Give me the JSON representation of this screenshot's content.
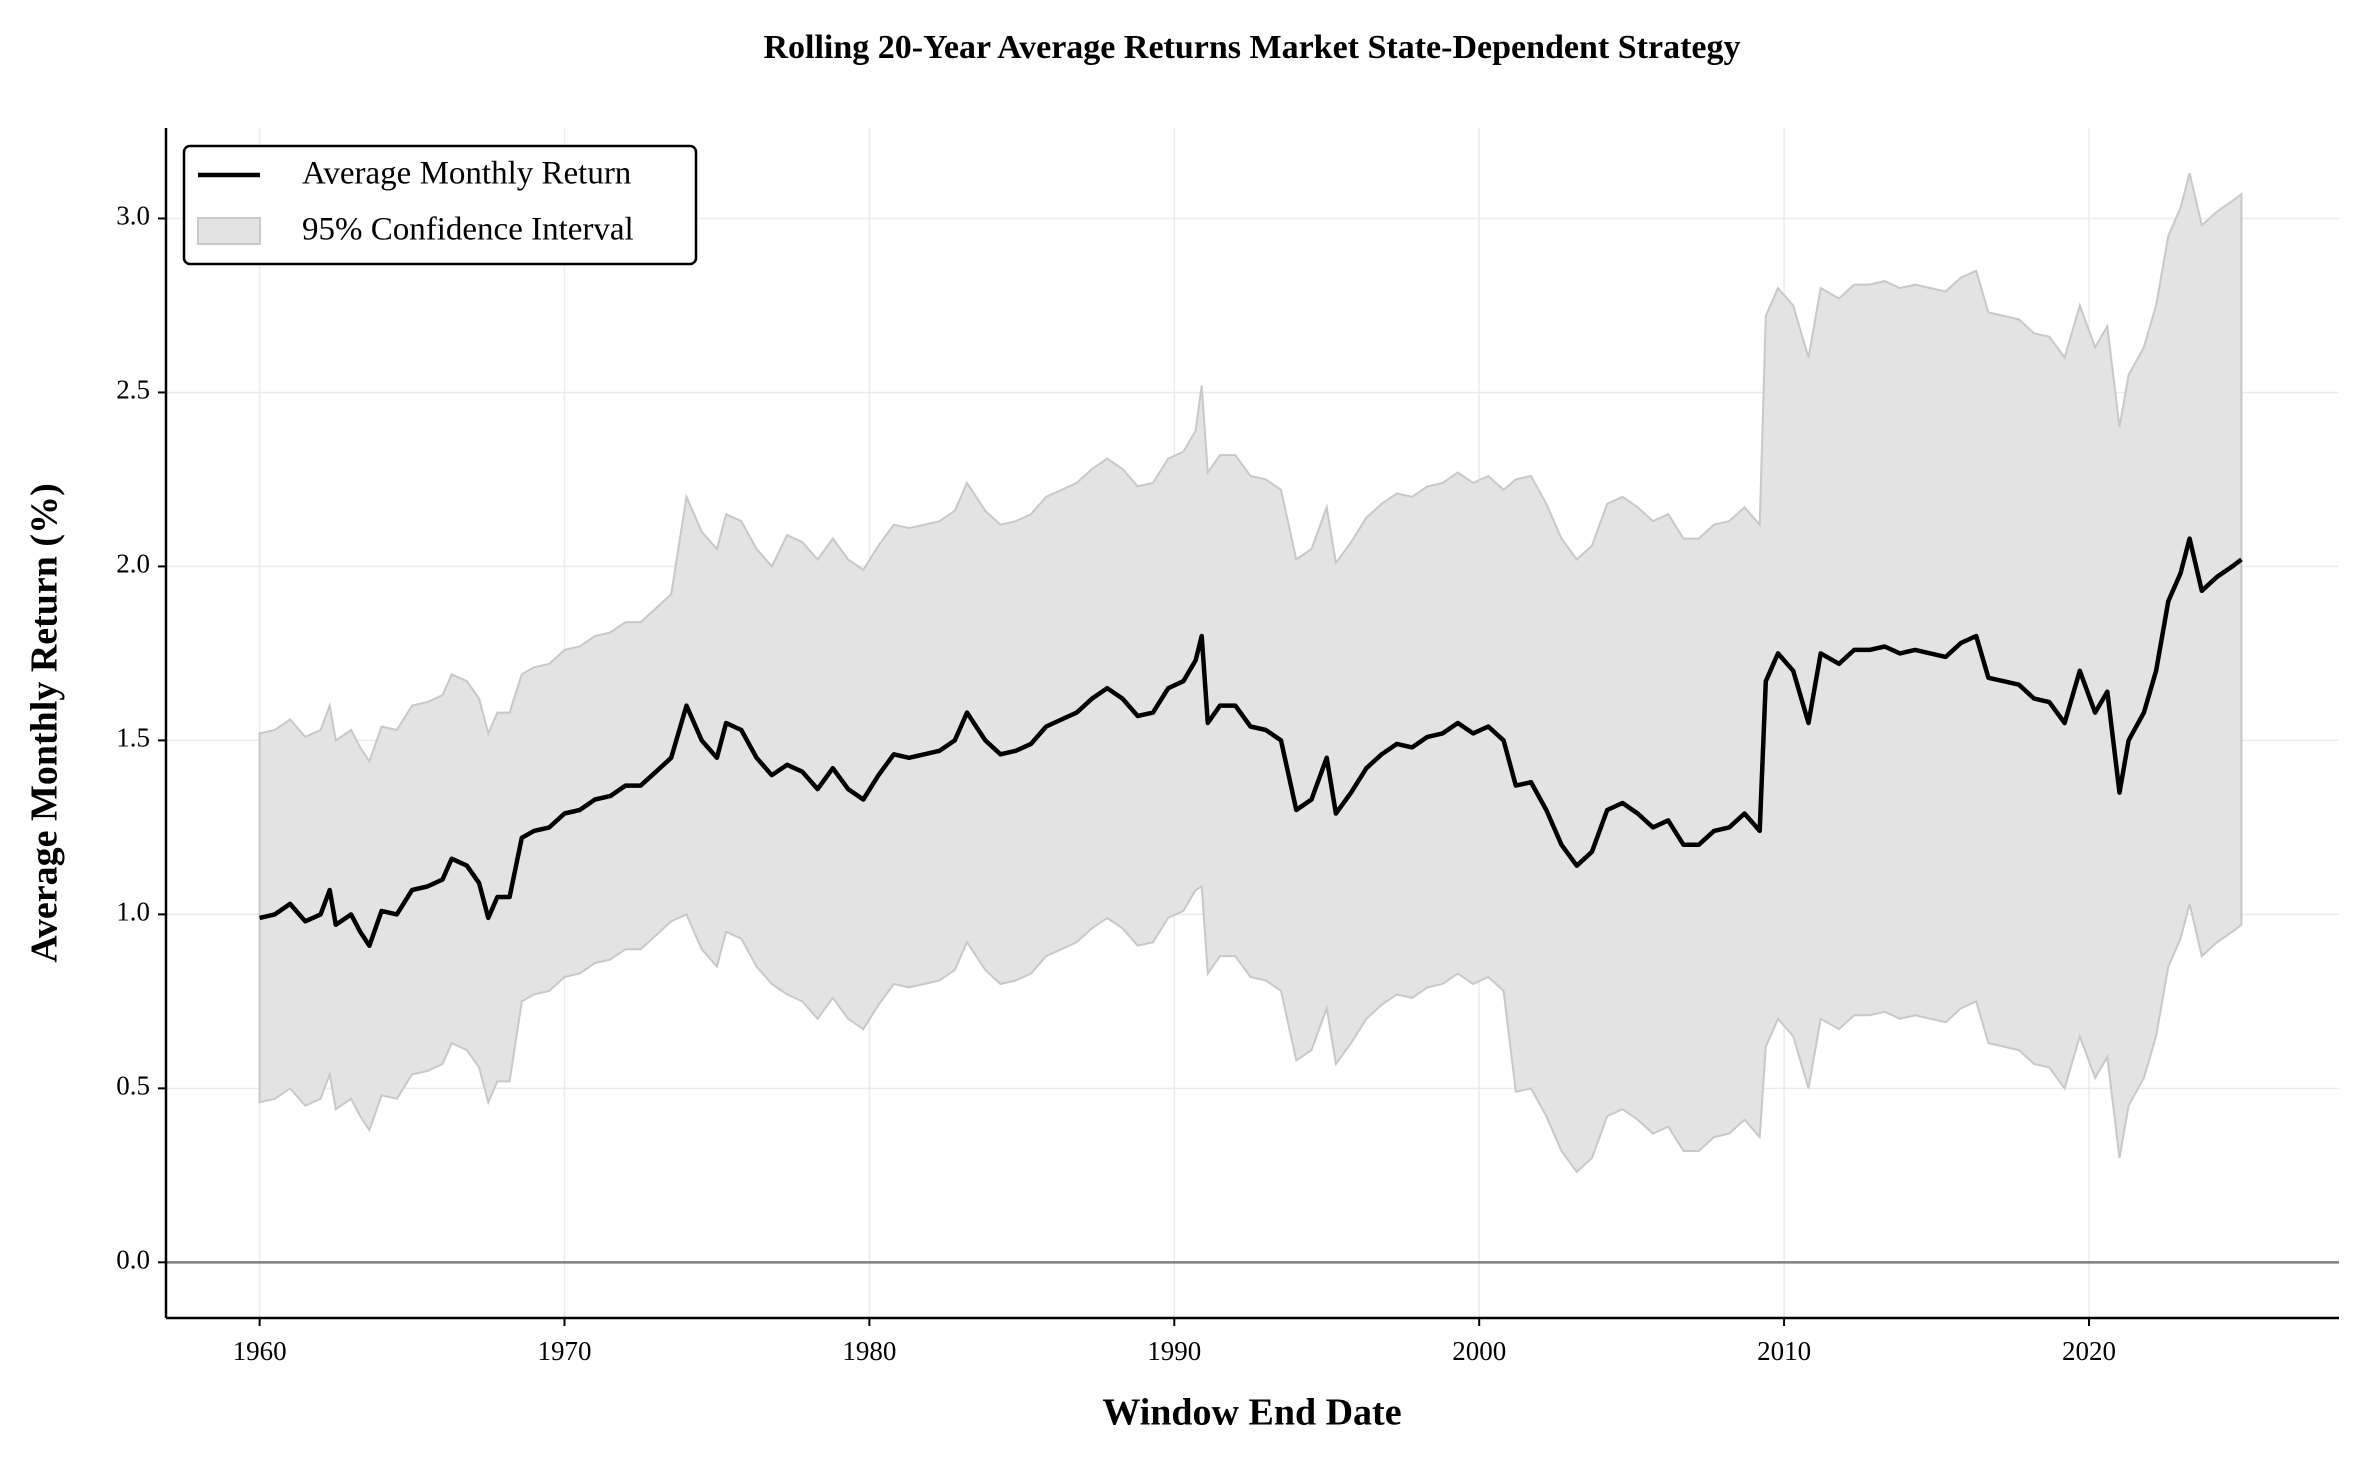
{
  "chart_data": {
    "type": "line",
    "title": "Rolling 20-Year Average Returns Market State-Dependent Strategy",
    "x_label": "Window End Date",
    "y_label": "Average Monthly Return (%)",
    "xlim": [
      1956.93,
      2028.2
    ],
    "ylim": [
      -0.16,
      3.26
    ],
    "xticks": [
      1960,
      1970,
      1980,
      1990,
      2000,
      2010,
      2020
    ],
    "yticks": [
      {
        "value": 0,
        "label": "0.0"
      },
      0.5,
      {
        "value": 1,
        "label": "1.0"
      },
      1.5,
      {
        "value": 2,
        "label": "2.0"
      },
      2.5,
      {
        "value": 3,
        "label": "3.0"
      }
    ],
    "grid": true,
    "reference_line": 0,
    "legend": "upper left",
    "x": [
      1960,
      1960.5,
      1961,
      1961.5,
      1962,
      1962.3,
      1962.5,
      1963,
      1963.3,
      1963.6,
      1964,
      1964.5,
      1965,
      1965.5,
      1966,
      1966.3,
      1966.8,
      1967.2,
      1967.5,
      1967.8,
      1968.2,
      1968.6,
      1969,
      1969.5,
      1970,
      1970.5,
      1971,
      1971.5,
      1972,
      1972.5,
      1973,
      1973.5,
      1974,
      1974.5,
      1975,
      1975.3,
      1975.8,
      1976.3,
      1976.8,
      1977.3,
      1977.8,
      1978.3,
      1978.8,
      1979.3,
      1979.8,
      1980.3,
      1980.8,
      1981.3,
      1981.8,
      1982.3,
      1982.8,
      1983.2,
      1983.8,
      1984.3,
      1984.8,
      1985.3,
      1985.8,
      1986.3,
      1986.8,
      1987.3,
      1987.8,
      1988.3,
      1988.8,
      1989.3,
      1989.8,
      1990.3,
      1990.7,
      1990.9,
      1991.1,
      1991.5,
      1992,
      1992.5,
      1993,
      1993.5,
      1994,
      1994.5,
      1995,
      1995.3,
      1995.8,
      1996.3,
      1996.8,
      1997.3,
      1997.8,
      1998.3,
      1998.8,
      1999.3,
      1999.8,
      2000.3,
      2000.8,
      2001.2,
      2001.7,
      2002.2,
      2002.7,
      2003.2,
      2003.7,
      2004.2,
      2004.7,
      2005.2,
      2005.7,
      2006.2,
      2006.7,
      2007.2,
      2007.7,
      2008.2,
      2008.7,
      2009.2,
      2009.4,
      2009.8,
      2010.3,
      2010.8,
      2011.2,
      2011.8,
      2012.3,
      2012.8,
      2013.3,
      2013.8,
      2014.3,
      2014.8,
      2015.3,
      2015.8,
      2016.3,
      2016.7,
      2017.2,
      2017.7,
      2018.2,
      2018.7,
      2019.2,
      2019.7,
      2020.2,
      2020.6,
      2021,
      2021.3,
      2021.8,
      2022.2,
      2022.6,
      2023,
      2023.3,
      2023.7,
      2024.2,
      2024.7,
      2025
    ],
    "series": [
      {
        "name": "Average Monthly Return",
        "color": "#000000",
        "values": [
          0.99,
          1.0,
          1.03,
          0.98,
          1.0,
          1.07,
          0.97,
          1.0,
          0.95,
          0.91,
          1.01,
          1.0,
          1.07,
          1.08,
          1.1,
          1.16,
          1.14,
          1.09,
          0.99,
          1.05,
          1.05,
          1.22,
          1.24,
          1.25,
          1.29,
          1.3,
          1.33,
          1.34,
          1.37,
          1.37,
          1.41,
          1.45,
          1.6,
          1.5,
          1.45,
          1.55,
          1.53,
          1.45,
          1.4,
          1.43,
          1.41,
          1.36,
          1.42,
          1.36,
          1.33,
          1.4,
          1.46,
          1.45,
          1.46,
          1.47,
          1.5,
          1.58,
          1.5,
          1.46,
          1.47,
          1.49,
          1.54,
          1.56,
          1.58,
          1.62,
          1.65,
          1.62,
          1.57,
          1.58,
          1.65,
          1.67,
          1.73,
          1.8,
          1.55,
          1.6,
          1.6,
          1.54,
          1.53,
          1.5,
          1.3,
          1.33,
          1.45,
          1.29,
          1.35,
          1.42,
          1.46,
          1.49,
          1.48,
          1.51,
          1.52,
          1.55,
          1.52,
          1.54,
          1.5,
          1.37,
          1.38,
          1.3,
          1.2,
          1.14,
          1.18,
          1.3,
          1.32,
          1.29,
          1.25,
          1.27,
          1.2,
          1.2,
          1.24,
          1.25,
          1.29,
          1.24,
          1.67,
          1.75,
          1.7,
          1.55,
          1.75,
          1.72,
          1.76,
          1.76,
          1.77,
          1.75,
          1.76,
          1.75,
          1.74,
          1.78,
          1.8,
          1.68,
          1.67,
          1.66,
          1.62,
          1.61,
          1.55,
          1.7,
          1.58,
          1.64,
          1.35,
          1.5,
          1.58,
          1.7,
          1.9,
          1.98,
          2.08,
          1.93,
          1.97,
          2.0,
          2.02
        ]
      }
    ],
    "band": {
      "name": "95% Confidence Interval",
      "color": "#e3e3e3",
      "edge_color": "#c8c8c8",
      "lower": [
        0.46,
        0.47,
        0.5,
        0.45,
        0.47,
        0.54,
        0.44,
        0.47,
        0.42,
        0.38,
        0.48,
        0.47,
        0.54,
        0.55,
        0.57,
        0.63,
        0.61,
        0.56,
        0.46,
        0.52,
        0.52,
        0.75,
        0.77,
        0.78,
        0.82,
        0.83,
        0.86,
        0.87,
        0.9,
        0.9,
        0.94,
        0.98,
        1.0,
        0.9,
        0.85,
        0.95,
        0.93,
        0.85,
        0.8,
        0.77,
        0.75,
        0.7,
        0.76,
        0.7,
        0.67,
        0.74,
        0.8,
        0.79,
        0.8,
        0.81,
        0.84,
        0.92,
        0.84,
        0.8,
        0.81,
        0.83,
        0.88,
        0.9,
        0.92,
        0.96,
        0.99,
        0.96,
        0.91,
        0.92,
        0.99,
        1.01,
        1.07,
        1.08,
        0.83,
        0.88,
        0.88,
        0.82,
        0.81,
        0.78,
        0.58,
        0.61,
        0.73,
        0.57,
        0.63,
        0.7,
        0.74,
        0.77,
        0.76,
        0.79,
        0.8,
        0.83,
        0.8,
        0.82,
        0.78,
        0.49,
        0.5,
        0.42,
        0.32,
        0.26,
        0.3,
        0.42,
        0.44,
        0.41,
        0.37,
        0.39,
        0.32,
        0.32,
        0.36,
        0.37,
        0.41,
        0.36,
        0.62,
        0.7,
        0.65,
        0.5,
        0.7,
        0.67,
        0.71,
        0.71,
        0.72,
        0.7,
        0.71,
        0.7,
        0.69,
        0.73,
        0.75,
        0.63,
        0.62,
        0.61,
        0.57,
        0.56,
        0.5,
        0.65,
        0.53,
        0.59,
        0.3,
        0.45,
        0.53,
        0.65,
        0.85,
        0.93,
        1.03,
        0.88,
        0.92,
        0.95,
        0.97
      ],
      "upper": [
        1.52,
        1.53,
        1.56,
        1.51,
        1.53,
        1.6,
        1.5,
        1.53,
        1.48,
        1.44,
        1.54,
        1.53,
        1.6,
        1.61,
        1.63,
        1.69,
        1.67,
        1.62,
        1.52,
        1.58,
        1.58,
        1.69,
        1.71,
        1.72,
        1.76,
        1.77,
        1.8,
        1.81,
        1.84,
        1.84,
        1.88,
        1.92,
        2.2,
        2.1,
        2.05,
        2.15,
        2.13,
        2.05,
        2.0,
        2.09,
        2.07,
        2.02,
        2.08,
        2.02,
        1.99,
        2.06,
        2.12,
        2.11,
        2.12,
        2.13,
        2.16,
        2.24,
        2.16,
        2.12,
        2.13,
        2.15,
        2.2,
        2.22,
        2.24,
        2.28,
        2.31,
        2.28,
        2.23,
        2.24,
        2.31,
        2.33,
        2.39,
        2.52,
        2.27,
        2.32,
        2.32,
        2.26,
        2.25,
        2.22,
        2.02,
        2.05,
        2.17,
        2.01,
        2.07,
        2.14,
        2.18,
        2.21,
        2.2,
        2.23,
        2.24,
        2.27,
        2.24,
        2.26,
        2.22,
        2.25,
        2.26,
        2.18,
        2.08,
        2.02,
        2.06,
        2.18,
        2.2,
        2.17,
        2.13,
        2.15,
        2.08,
        2.08,
        2.12,
        2.13,
        2.17,
        2.12,
        2.72,
        2.8,
        2.75,
        2.6,
        2.8,
        2.77,
        2.81,
        2.81,
        2.82,
        2.8,
        2.81,
        2.8,
        2.79,
        2.83,
        2.85,
        2.73,
        2.72,
        2.71,
        2.67,
        2.66,
        2.6,
        2.75,
        2.63,
        2.69,
        2.4,
        2.55,
        2.63,
        2.75,
        2.95,
        3.03,
        3.13,
        2.98,
        3.02,
        3.05,
        3.07
      ]
    }
  }
}
